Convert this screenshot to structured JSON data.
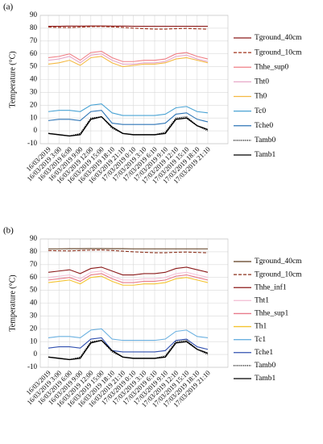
{
  "chart_data": [
    {
      "type": "line",
      "label": "(a)",
      "ylabel": "Temperature (°C)",
      "ylim": [
        -10,
        90
      ],
      "yticks": [
        -10,
        0,
        10,
        20,
        30,
        40,
        50,
        60,
        70,
        80,
        90
      ],
      "grid": true,
      "legend": "right",
      "categories": [
        "16/03/2019",
        "16/03/2019 3:00",
        "16/03/2019 6:00",
        "16/03/2019 9:00",
        "16/03/2019 12:00",
        "16/03/2019 15:00",
        "16/03/2019 18:10",
        "16/03/2019 21:10",
        "17/03/2019 0:10",
        "17/03/2019 3:10",
        "17/03/2019 6:10",
        "17/03/2019 9:10",
        "17/03/2019 12:10",
        "17/03/2019 15:10",
        "17/03/2019 18:10",
        "17/03/2019 21:10"
      ],
      "series": [
        {
          "name": "Tground_40cm",
          "color": "#8b1a1a",
          "style": "solid",
          "values": [
            81.5,
            81.5,
            81.6,
            81.6,
            81.7,
            81.7,
            81.6,
            81.6,
            81.5,
            81.5,
            81.5,
            81.5,
            81.5,
            81.5,
            81.5,
            81.5
          ]
        },
        {
          "name": "Tground_10cm",
          "color": "#a0301a",
          "style": "dashed",
          "values": [
            80.8,
            80.6,
            80.5,
            80.8,
            81.2,
            81.3,
            81,
            80.6,
            80,
            79.6,
            79.3,
            79.3,
            79.6,
            79.8,
            79.5,
            79.2
          ]
        },
        {
          "name": "Thhe_sup0",
          "color": "#f07f86",
          "style": "solid",
          "values": [
            57,
            58,
            60,
            55,
            61,
            62,
            57,
            54,
            54,
            55,
            55,
            56,
            60,
            61,
            58,
            56
          ]
        },
        {
          "name": "Tht0",
          "color": "#e8a8c8",
          "style": "solid",
          "values": [
            55,
            56,
            58,
            53,
            59,
            60,
            55,
            52,
            52,
            53,
            53,
            54,
            58,
            59,
            56,
            54
          ]
        },
        {
          "name": "Th0",
          "color": "#f4b942",
          "style": "solid",
          "values": [
            52,
            53,
            55,
            51,
            57,
            58,
            53,
            50,
            51,
            52,
            52,
            53,
            56,
            57,
            55,
            53
          ]
        },
        {
          "name": "Tc0",
          "color": "#4aa3d4",
          "style": "solid",
          "values": [
            15,
            16,
            16,
            15,
            20,
            21,
            14,
            12,
            12,
            12,
            12,
            13,
            18,
            19,
            15,
            14
          ]
        },
        {
          "name": "Tche0",
          "color": "#2e75b6",
          "style": "solid",
          "values": [
            8,
            9,
            9,
            8,
            15,
            16,
            6,
            5,
            5,
            5,
            5,
            6,
            13,
            14,
            9,
            7
          ]
        },
        {
          "name": "Tamb0",
          "color": "#000000",
          "style": "dotted",
          "values": [
            -2,
            -3,
            -4,
            -2,
            10,
            11,
            2,
            -2,
            -3,
            -3,
            -3,
            -1,
            10,
            11,
            4,
            0
          ]
        },
        {
          "name": "Tamb1",
          "color": "#000000",
          "style": "solid",
          "values": [
            -2,
            -3,
            -4,
            -3,
            9,
            11,
            3,
            -2,
            -3,
            -3,
            -3,
            -2,
            9,
            10,
            4,
            1
          ]
        }
      ]
    },
    {
      "type": "line",
      "label": "(b)",
      "ylabel": "Temperature (°C)",
      "ylim": [
        -10,
        90
      ],
      "yticks": [
        -10,
        0,
        10,
        20,
        30,
        40,
        50,
        60,
        70,
        80,
        90
      ],
      "grid": true,
      "legend": "right",
      "categories": [
        "16/03/2019",
        "16/03/2019 3:00",
        "16/03/2019 6:00",
        "16/03/2019 9:00",
        "16/03/2019 12:00",
        "16/03/2019 15:00",
        "16/03/2019 18:10",
        "16/03/2019 21:10",
        "17/03/2019 0:10",
        "17/03/2019 3:10",
        "17/03/2019 6:10",
        "17/03/2019 9:10",
        "17/03/2019 12:10",
        "17/03/2019 15:10",
        "17/03/2019 18:10",
        "17/03/2019 21:10"
      ],
      "series": [
        {
          "name": "Tground_40cm",
          "color": "#5c3a1e",
          "style": "solid",
          "values": [
            82.3,
            82.3,
            82.4,
            82.4,
            82.5,
            82.5,
            82.4,
            82.4,
            82.3,
            82.3,
            82.3,
            82.3,
            82.3,
            82.3,
            82.3,
            82.3
          ]
        },
        {
          "name": "Tground_10cm",
          "color": "#8b2f1a",
          "style": "dashed",
          "values": [
            81,
            80.8,
            80.7,
            81,
            81.3,
            81.4,
            81,
            80.5,
            80,
            79.6,
            79.3,
            79.3,
            79.6,
            79.8,
            79.5,
            79.2
          ]
        },
        {
          "name": "Thhe_inf1",
          "color": "#8b1a1a",
          "style": "solid",
          "values": [
            64,
            65,
            66,
            63,
            67,
            68,
            65,
            62,
            62,
            63,
            63,
            64,
            67,
            68,
            66,
            64
          ]
        },
        {
          "name": "Tht1",
          "color": "#f4c2d7",
          "style": "solid",
          "values": [
            60,
            61,
            62,
            59,
            64,
            65,
            61,
            58,
            58,
            59,
            59,
            60,
            63,
            64,
            62,
            60
          ]
        },
        {
          "name": "Thhe_sup1",
          "color": "#e87a8a",
          "style": "solid",
          "values": [
            58,
            59,
            60,
            57,
            62,
            63,
            59,
            56,
            56,
            57,
            57,
            58,
            61,
            62,
            60,
            58
          ]
        },
        {
          "name": "Th1",
          "color": "#f4c430",
          "style": "solid",
          "values": [
            56,
            57,
            58,
            55,
            60,
            61,
            57,
            54,
            54,
            55,
            55,
            56,
            59,
            60,
            58,
            56
          ]
        },
        {
          "name": "Tc1",
          "color": "#6ab0e0",
          "style": "solid",
          "values": [
            13,
            14,
            14,
            13,
            19,
            20,
            12,
            11,
            11,
            11,
            11,
            12,
            18,
            19,
            14,
            13
          ]
        },
        {
          "name": "Tche1",
          "color": "#3050b0",
          "style": "solid",
          "values": [
            5,
            6,
            6,
            5,
            12,
            13,
            3,
            2,
            2,
            2,
            2,
            3,
            11,
            12,
            6,
            4
          ]
        },
        {
          "name": "Tamb0",
          "color": "#000000",
          "style": "dotted",
          "values": [
            -2,
            -3,
            -4,
            -2,
            10,
            11,
            2,
            -2,
            -3,
            -3,
            -3,
            -1,
            10,
            11,
            4,
            0
          ]
        },
        {
          "name": "Tamb1",
          "color": "#000000",
          "style": "solid",
          "values": [
            -2,
            -3,
            -4,
            -3,
            9,
            11,
            3,
            -2,
            -3,
            -3,
            -3,
            -2,
            9,
            10,
            4,
            1
          ]
        }
      ]
    }
  ]
}
